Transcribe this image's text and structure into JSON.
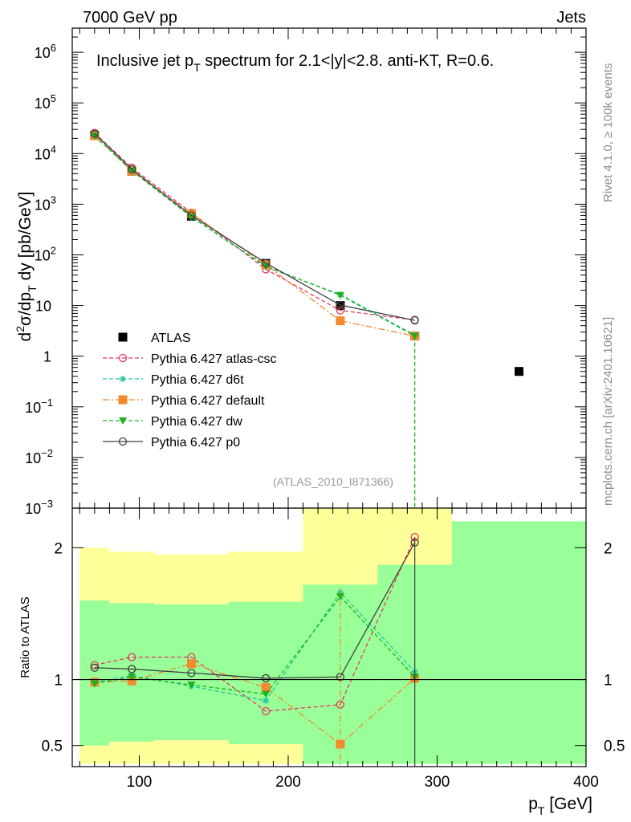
{
  "header": {
    "left": "7000 GeV pp",
    "right": "Jets"
  },
  "side": {
    "top": "Rivet 4.1.0, ≥ 100k events",
    "bottom": "mcplots.cern.ch [arXiv:2401.10621]"
  },
  "chart_data": [
    {
      "type": "line",
      "title": "Inclusive jet p_T spectrum for 2.1<|y|<2.8.  anti-KT, R=0.6.",
      "title_parts": {
        "pre": "Inclusive jet p",
        "sub": "T",
        "post": " spectrum for 2.1<|y|<2.8.  anti-KT, R=0.6."
      },
      "xlabel": "p_T [GeV]",
      "ylabel": "d²σ/dp_T dy [pb/GeV]",
      "ylabel_parts": {
        "d": "d",
        "two": "2",
        "mid": "σ/dp",
        "T": "T",
        "rest": " dy [pb/GeV]"
      },
      "xlim": [
        55,
        400
      ],
      "ylim": [
        0.001,
        3000000
      ],
      "yscale": "log",
      "yticks": [
        {
          "value": 1000000,
          "base": "10",
          "exp": "6"
        },
        {
          "value": 100000,
          "base": "10",
          "exp": "5"
        },
        {
          "value": 10000,
          "base": "10",
          "exp": "4"
        },
        {
          "value": 1000,
          "base": "10",
          "exp": "3"
        },
        {
          "value": 100,
          "base": "10",
          "exp": "2"
        },
        {
          "value": 10,
          "base": "10",
          "exp": ""
        },
        {
          "value": 1,
          "base": "1",
          "exp": ""
        },
        {
          "value": 0.1,
          "base": "10",
          "exp": "−1"
        },
        {
          "value": 0.01,
          "base": "10",
          "exp": "−2"
        },
        {
          "value": 0.001,
          "base": "10",
          "exp": "−3"
        }
      ],
      "watermark": "(ATLAS_2010_I871366)",
      "legend_position": "bottom-left",
      "series": [
        {
          "name": "ATLAS",
          "color": "#000000",
          "marker": "square",
          "x": [
            70,
            95,
            135,
            185,
            235,
            285,
            355
          ],
          "y": [
            23000,
            4500,
            580,
            68,
            10,
            2.5,
            0.5
          ]
        },
        {
          "name": "Pythia 6.427 atlas-csc",
          "color": "#e8375e",
          "marker": "circle-open",
          "dash": "5,3",
          "x": [
            70,
            95,
            135,
            185,
            235,
            285
          ],
          "y": [
            25500,
            5250,
            680,
            52,
            8,
            5.2
          ]
        },
        {
          "name": "Pythia 6.427 d6t",
          "color": "#1ec8a0",
          "marker": "star",
          "dash": "5,3",
          "x": [
            70,
            95,
            135,
            185,
            235,
            285
          ],
          "y": [
            22500,
            4600,
            560,
            58,
            16.5,
            2.6
          ]
        },
        {
          "name": "Pythia 6.427 default",
          "color": "#f28a2e",
          "marker": "square",
          "dash": "8,3,2,3",
          "x": [
            70,
            95,
            135,
            185,
            235,
            285
          ],
          "y": [
            22500,
            4500,
            650,
            64,
            5,
            2.5
          ]
        },
        {
          "name": "Pythia 6.427 dw",
          "color": "#20b020",
          "marker": "triangle-down",
          "dash": "5,3",
          "x": [
            70,
            95,
            135,
            185,
            235,
            285
          ],
          "y": [
            22300,
            4600,
            560,
            60,
            16,
            2.5
          ]
        },
        {
          "name": "Pythia 6.427 p0",
          "color": "#404040",
          "marker": "circle-open",
          "dash": "",
          "x": [
            70,
            95,
            135,
            185,
            235,
            285
          ],
          "y": [
            24800,
            4900,
            600,
            69,
            10.2,
            5.1
          ]
        }
      ]
    },
    {
      "type": "line",
      "ylabel": "Ratio to ATLAS",
      "xlabel": "p_T [GeV]",
      "xlim": [
        55,
        400
      ],
      "ylim": [
        0.34,
        2.3
      ],
      "xticks": [
        100,
        200,
        300,
        400
      ],
      "yticks": [
        0.5,
        1,
        2
      ],
      "bands": [
        {
          "x0": 60,
          "x1": 80,
          "yellow": [
            0.36,
            2.0
          ],
          "green": [
            0.5,
            1.6
          ]
        },
        {
          "x0": 80,
          "x1": 110,
          "yellow": [
            0.36,
            1.97
          ],
          "green": [
            0.53,
            1.58
          ]
        },
        {
          "x0": 110,
          "x1": 160,
          "yellow": [
            0.36,
            1.95
          ],
          "green": [
            0.54,
            1.57
          ]
        },
        {
          "x0": 160,
          "x1": 210,
          "yellow": [
            0.36,
            1.97
          ],
          "green": [
            0.51,
            1.59
          ]
        },
        {
          "x0": 210,
          "x1": 260,
          "yellow": [
            0.36,
            2.3
          ],
          "green": [
            0.36,
            1.72
          ]
        },
        {
          "x0": 260,
          "x1": 310,
          "yellow": [
            0.36,
            2.3
          ],
          "green": [
            0.36,
            1.87
          ]
        },
        {
          "x0": 310,
          "x1": 400,
          "yellow": [
            0.36,
            2.2
          ],
          "green": [
            0.36,
            2.2
          ]
        }
      ],
      "series": [
        {
          "name": "Pythia 6.427 atlas-csc",
          "x": [
            70,
            95,
            135,
            185,
            235,
            285
          ],
          "y": [
            1.11,
            1.17,
            1.17,
            0.76,
            0.81,
            2.08
          ]
        },
        {
          "name": "Pythia 6.427 d6t",
          "x": [
            70,
            95,
            135,
            185,
            235,
            285
          ],
          "y": [
            0.98,
            1.03,
            0.95,
            0.84,
            1.66,
            1.06
          ]
        },
        {
          "name": "Pythia 6.427 default",
          "x": [
            70,
            95,
            135,
            185,
            235,
            285
          ],
          "y": [
            0.98,
            0.99,
            1.12,
            0.94,
            0.51,
            1.01
          ]
        },
        {
          "name": "Pythia 6.427 dw",
          "x": [
            70,
            95,
            135,
            185,
            235,
            285
          ],
          "y": [
            0.97,
            1.02,
            0.96,
            0.89,
            1.63,
            1.02
          ]
        },
        {
          "name": "Pythia 6.427 p0",
          "x": [
            70,
            95,
            135,
            185,
            235,
            285
          ],
          "y": [
            1.09,
            1.08,
            1.05,
            1.01,
            1.02,
            2.04
          ]
        }
      ]
    }
  ]
}
